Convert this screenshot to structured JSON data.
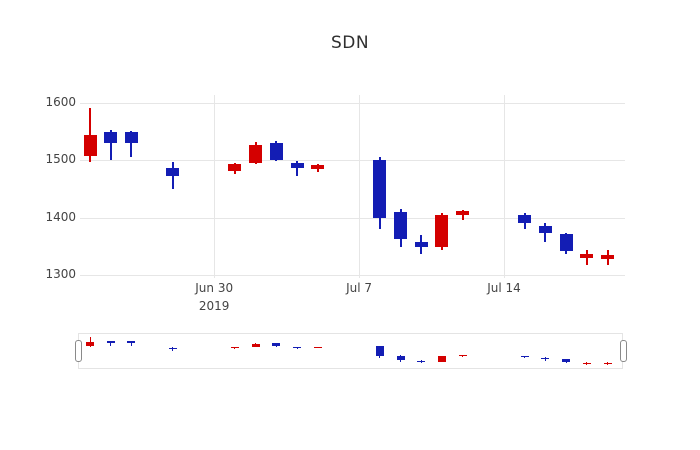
{
  "title": "SDN",
  "chart_data": {
    "type": "candlestick",
    "title": "SDN",
    "increasing_color": "#d40000",
    "decreasing_color": "#131db4",
    "grid": true,
    "legend": false,
    "ylim": [
      1295,
      1615
    ],
    "y_ticks": [
      1300,
      1400,
      1500,
      1600
    ],
    "x_ticks": [
      {
        "label": "Jun 30",
        "sublabel": "2019",
        "slot": 6
      },
      {
        "label": "Jul 7",
        "sublabel": "",
        "slot": 13
      },
      {
        "label": "Jul 14",
        "sublabel": "",
        "slot": 20
      }
    ],
    "candles": [
      {
        "date": "Jun 24",
        "slot": 0,
        "open": 1508,
        "high": 1592,
        "low": 1497,
        "close": 1545
      },
      {
        "date": "Jun 25",
        "slot": 1,
        "open": 1550,
        "high": 1553,
        "low": 1500,
        "close": 1530
      },
      {
        "date": "Jun 26",
        "slot": 2,
        "open": 1550,
        "high": 1552,
        "low": 1506,
        "close": 1530
      },
      {
        "date": "Jun 28",
        "slot": 4,
        "open": 1487,
        "high": 1497,
        "low": 1450,
        "close": 1472
      },
      {
        "date": "Jul 1",
        "slot": 7,
        "open": 1481,
        "high": 1496,
        "low": 1477,
        "close": 1493
      },
      {
        "date": "Jul 2",
        "slot": 8,
        "open": 1496,
        "high": 1532,
        "low": 1493,
        "close": 1526
      },
      {
        "date": "Jul 3",
        "slot": 9,
        "open": 1531,
        "high": 1533,
        "low": 1499,
        "close": 1501
      },
      {
        "date": "Jul 4",
        "slot": 10,
        "open": 1496,
        "high": 1499,
        "low": 1472,
        "close": 1487
      },
      {
        "date": "Jul 5",
        "slot": 11,
        "open": 1484,
        "high": 1494,
        "low": 1480,
        "close": 1491
      },
      {
        "date": "Jul 8",
        "slot": 14,
        "open": 1500,
        "high": 1506,
        "low": 1380,
        "close": 1400
      },
      {
        "date": "Jul 9",
        "slot": 15,
        "open": 1410,
        "high": 1415,
        "low": 1348,
        "close": 1362
      },
      {
        "date": "Jul 10",
        "slot": 16,
        "open": 1357,
        "high": 1369,
        "low": 1337,
        "close": 1348
      },
      {
        "date": "Jul 11",
        "slot": 17,
        "open": 1349,
        "high": 1409,
        "low": 1344,
        "close": 1405
      },
      {
        "date": "Jul 12",
        "slot": 18,
        "open": 1404,
        "high": 1414,
        "low": 1396,
        "close": 1411
      },
      {
        "date": "Jul 15",
        "slot": 21,
        "open": 1405,
        "high": 1408,
        "low": 1381,
        "close": 1390
      },
      {
        "date": "Jul 16",
        "slot": 22,
        "open": 1385,
        "high": 1391,
        "low": 1357,
        "close": 1373
      },
      {
        "date": "Jul 17",
        "slot": 23,
        "open": 1371,
        "high": 1374,
        "low": 1337,
        "close": 1341
      },
      {
        "date": "Jul 18",
        "slot": 24,
        "open": 1329,
        "high": 1344,
        "low": 1318,
        "close": 1336
      },
      {
        "date": "Jul 19",
        "slot": 25,
        "open": 1328,
        "high": 1343,
        "low": 1317,
        "close": 1335
      }
    ]
  },
  "rangeslider": {
    "present": true
  }
}
